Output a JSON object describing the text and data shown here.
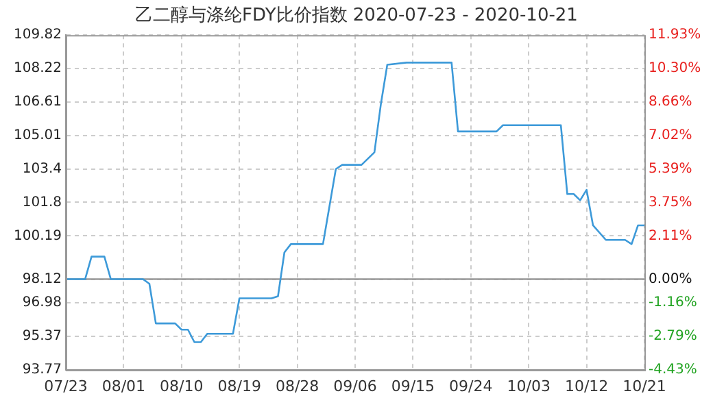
{
  "chart_data": {
    "type": "line",
    "title": "乙二醇与涤纶FDY比价指数 2020-07-23 - 2020-10-21",
    "x": [
      "--07-23",
      "--07-26",
      "--07-27",
      "--07-29",
      "--07-30",
      "--08-04",
      "--08-05",
      "--08-06",
      "--08-09",
      "--08-10",
      "--08-11",
      "--08-12",
      "--08-13",
      "--08-14",
      "--08-18",
      "--08-19",
      "--08-24",
      "--08-25",
      "--08-26",
      "--08-27",
      "--09-01",
      "--09-02",
      "--09-03",
      "--09-04",
      "--09-07",
      "--09-09",
      "--09-10",
      "--09-11",
      "--09-14",
      "--09-21",
      "--09-22",
      "--09-28",
      "--09-29",
      "--10-08",
      "--10-09",
      "--10-10",
      "--10-11",
      "--10-12",
      "--10-13",
      "--10-15",
      "--10-18",
      "--10-19",
      "--10-20",
      "--10-21"
    ],
    "series": [
      {
        "color": "#3d9ad9",
        "values": [
          98.12,
          98.12,
          99.2,
          99.2,
          98.12,
          98.12,
          97.9,
          96.0,
          96.0,
          95.7,
          95.7,
          95.1,
          95.1,
          95.5,
          95.5,
          97.2,
          97.2,
          97.3,
          99.4,
          99.8,
          99.8,
          101.6,
          103.4,
          103.6,
          103.6,
          104.2,
          106.5,
          108.4,
          108.5,
          108.5,
          105.2,
          105.2,
          105.5,
          105.5,
          102.2,
          102.2,
          101.9,
          102.4,
          100.7,
          100.0,
          100.0,
          99.8,
          100.7,
          100.7
        ]
      }
    ],
    "xlim": [
      "--07-23",
      "--10-21"
    ],
    "xticks": [
      {
        "value": "--07-23",
        "label": "07/23"
      },
      {
        "value": "--08-01",
        "label": "08/01"
      },
      {
        "value": "--08-10",
        "label": "08/10"
      },
      {
        "value": "--08-19",
        "label": "08/19"
      },
      {
        "value": "--08-28",
        "label": "08/28"
      },
      {
        "value": "--09-06",
        "label": "09/06"
      },
      {
        "value": "--09-15",
        "label": "09/15"
      },
      {
        "value": "--09-24",
        "label": "09/24"
      },
      {
        "value": "--10-03",
        "label": "10/03"
      },
      {
        "value": "--10-12",
        "label": "10/12"
      },
      {
        "value": "--10-21",
        "label": "10/21"
      }
    ],
    "ylim": [
      93.77,
      109.82
    ],
    "yticks": [
      93.77,
      95.37,
      96.98,
      98.12,
      100.19,
      101.8,
      103.4,
      105.01,
      106.61,
      108.22,
      109.82
    ],
    "y2lim": [
      -4.43,
      11.93
    ],
    "y2ticks": [
      {
        "value": -4.43,
        "label": "-4.43%"
      },
      {
        "value": -2.79,
        "label": "-2.79%"
      },
      {
        "value": -1.16,
        "label": "-1.16%"
      },
      {
        "value": 0,
        "label": "0.00%"
      },
      {
        "value": 2.11,
        "label": "2.11%"
      },
      {
        "value": 3.75,
        "label": "3.75%"
      },
      {
        "value": 5.39,
        "label": "5.39%"
      },
      {
        "value": 7.02,
        "label": "7.02%"
      },
      {
        "value": 8.66,
        "label": "8.66%"
      },
      {
        "value": 10.3,
        "label": "10.30%"
      },
      {
        "value": 11.93,
        "label": "11.93%"
      }
    ],
    "ref_lines": [
      {
        "axis": "y",
        "value": 98.12,
        "color": "#999999"
      }
    ],
    "grid": true,
    "legend": false,
    "marker": "none",
    "line_style": "solid"
  }
}
